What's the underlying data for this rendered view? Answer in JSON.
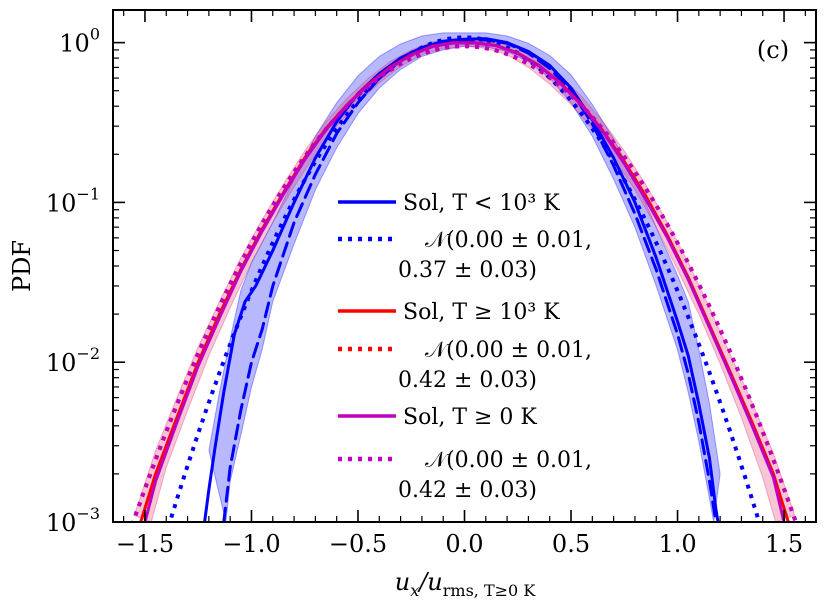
{
  "chart_data": {
    "type": "line",
    "panel_label": "(c)",
    "xlabel": "u_x/u_rms, T≥0 K",
    "xlabel_parts": {
      "u": "u",
      "x_sub": "x",
      "slash": "/u",
      "rms_sub": "rms, T≥0 K"
    },
    "ylabel": "PDF",
    "xlim": [
      -1.65,
      1.65
    ],
    "ylim": [
      0.001,
      1.6
    ],
    "y_scale": "log",
    "x_ticks": [
      -1.5,
      -1.0,
      -0.5,
      0.0,
      0.5,
      1.0,
      1.5
    ],
    "x_tick_labels": [
      "−1.5",
      "−1.0",
      "−0.5",
      "0.0",
      "0.5",
      "1.0",
      "1.5"
    ],
    "y_ticks": [
      {
        "value": 1,
        "base": "10",
        "exp": "0"
      },
      {
        "value": 0.1,
        "base": "10",
        "exp": "−1"
      },
      {
        "value": 0.01,
        "base": "10",
        "exp": "−2"
      },
      {
        "value": 0.001,
        "base": "10",
        "exp": "−3"
      }
    ],
    "colors": {
      "blue": "#0000ff",
      "red": "#ff0000",
      "magenta": "#c000c0",
      "pink": "#e0306a"
    },
    "series": [
      {
        "name": "Sol, T < 10³ K",
        "style": "solid",
        "color": "#0000ff",
        "points": [
          [
            -1.22,
            0.001
          ],
          [
            -1.2,
            0.0016
          ],
          [
            -1.17,
            0.003
          ],
          [
            -1.13,
            0.0065
          ],
          [
            -1.08,
            0.015
          ],
          [
            -1.03,
            0.024
          ],
          [
            -0.98,
            0.03
          ],
          [
            -0.9,
            0.05
          ],
          [
            -0.8,
            0.1
          ],
          [
            -0.7,
            0.19
          ],
          [
            -0.6,
            0.32
          ],
          [
            -0.5,
            0.48
          ],
          [
            -0.4,
            0.64
          ],
          [
            -0.3,
            0.8
          ],
          [
            -0.2,
            0.93
          ],
          [
            -0.1,
            1.02
          ],
          [
            0.0,
            1.05
          ],
          [
            0.1,
            1.06
          ],
          [
            0.2,
            1.0
          ],
          [
            0.3,
            0.88
          ],
          [
            0.4,
            0.72
          ],
          [
            0.5,
            0.52
          ],
          [
            0.6,
            0.33
          ],
          [
            0.7,
            0.19
          ],
          [
            0.8,
            0.1
          ],
          [
            0.9,
            0.045
          ],
          [
            1.0,
            0.018
          ],
          [
            1.05,
            0.011
          ],
          [
            1.1,
            0.0055
          ],
          [
            1.15,
            0.0025
          ],
          [
            1.18,
            0.0012
          ],
          [
            1.19,
            0.001
          ]
        ]
      },
      {
        "name": "Sol, T < 10³ K (shaded band)",
        "style": "band",
        "color": "#0000ff",
        "upper": [
          [
            -1.2,
            0.0028
          ],
          [
            -1.15,
            0.0065
          ],
          [
            -1.1,
            0.014
          ],
          [
            -1.05,
            0.028
          ],
          [
            -1.0,
            0.042
          ],
          [
            -0.9,
            0.075
          ],
          [
            -0.8,
            0.14
          ],
          [
            -0.7,
            0.26
          ],
          [
            -0.6,
            0.42
          ],
          [
            -0.5,
            0.62
          ],
          [
            -0.4,
            0.82
          ],
          [
            -0.3,
            0.98
          ],
          [
            -0.2,
            1.1
          ],
          [
            -0.1,
            1.15
          ],
          [
            0.0,
            1.15
          ],
          [
            0.1,
            1.15
          ],
          [
            0.2,
            1.1
          ],
          [
            0.3,
            0.99
          ],
          [
            0.4,
            0.83
          ],
          [
            0.5,
            0.63
          ],
          [
            0.6,
            0.41
          ],
          [
            0.7,
            0.25
          ],
          [
            0.8,
            0.14
          ],
          [
            0.9,
            0.07
          ],
          [
            1.0,
            0.035
          ],
          [
            1.05,
            0.024
          ],
          [
            1.1,
            0.012
          ],
          [
            1.15,
            0.0055
          ],
          [
            1.2,
            0.002
          ]
        ],
        "lower": [
          [
            -1.12,
            0.001
          ],
          [
            -1.1,
            0.0018
          ],
          [
            -1.05,
            0.0035
          ],
          [
            -1.0,
            0.007
          ],
          [
            -0.95,
            0.012
          ],
          [
            -0.9,
            0.024
          ],
          [
            -0.8,
            0.055
          ],
          [
            -0.7,
            0.12
          ],
          [
            -0.6,
            0.22
          ],
          [
            -0.5,
            0.36
          ],
          [
            -0.4,
            0.52
          ],
          [
            -0.3,
            0.68
          ],
          [
            -0.2,
            0.82
          ],
          [
            -0.1,
            0.9
          ],
          [
            0.0,
            0.95
          ],
          [
            0.1,
            0.94
          ],
          [
            0.2,
            0.88
          ],
          [
            0.3,
            0.76
          ],
          [
            0.4,
            0.6
          ],
          [
            0.5,
            0.42
          ],
          [
            0.6,
            0.26
          ],
          [
            0.7,
            0.14
          ],
          [
            0.8,
            0.07
          ],
          [
            0.9,
            0.03
          ],
          [
            1.0,
            0.012
          ],
          [
            1.05,
            0.0065
          ],
          [
            1.1,
            0.0032
          ],
          [
            1.15,
            0.0014
          ],
          [
            1.17,
            0.001
          ]
        ]
      },
      {
        "name": "Sol, T < 10³ K (dashed)",
        "style": "dashed",
        "color": "#0000ff",
        "points": [
          [
            -1.13,
            0.001
          ],
          [
            -1.1,
            0.0022
          ],
          [
            -1.05,
            0.005
          ],
          [
            -1.0,
            0.01
          ],
          [
            -0.95,
            0.016
          ],
          [
            -0.9,
            0.03
          ],
          [
            -0.8,
            0.075
          ],
          [
            -0.7,
            0.15
          ],
          [
            -0.6,
            0.27
          ],
          [
            -0.5,
            0.42
          ],
          [
            -0.4,
            0.6
          ],
          [
            -0.3,
            0.77
          ],
          [
            -0.2,
            0.9
          ],
          [
            -0.1,
            0.99
          ],
          [
            0.0,
            1.03
          ],
          [
            0.1,
            1.04
          ],
          [
            0.2,
            0.99
          ],
          [
            0.3,
            0.86
          ],
          [
            0.4,
            0.69
          ],
          [
            0.5,
            0.5
          ],
          [
            0.6,
            0.31
          ],
          [
            0.7,
            0.17
          ],
          [
            0.8,
            0.085
          ],
          [
            0.9,
            0.038
          ],
          [
            1.0,
            0.015
          ],
          [
            1.05,
            0.0085
          ],
          [
            1.1,
            0.0042
          ],
          [
            1.15,
            0.0018
          ],
          [
            1.18,
            0.001
          ]
        ]
      },
      {
        "name": "𝒩(0.00 ± 0.01, 0.37 ± 0.03)",
        "style": "dotted",
        "color": "#0000ff",
        "gaussian": {
          "mu": 0.0,
          "sigma": 0.37
        }
      },
      {
        "name": "Sol, T ≥ 10³ K",
        "style": "solid",
        "color": "#ff0000",
        "points": [
          [
            -1.52,
            0.001
          ],
          [
            -1.45,
            0.002
          ],
          [
            -1.35,
            0.0045
          ],
          [
            -1.25,
            0.01
          ],
          [
            -1.15,
            0.02
          ],
          [
            -1.05,
            0.038
          ],
          [
            -0.95,
            0.068
          ],
          [
            -0.85,
            0.115
          ],
          [
            -0.75,
            0.19
          ],
          [
            -0.65,
            0.29
          ],
          [
            -0.55,
            0.41
          ],
          [
            -0.45,
            0.55
          ],
          [
            -0.35,
            0.7
          ],
          [
            -0.25,
            0.84
          ],
          [
            -0.15,
            0.95
          ],
          [
            -0.05,
            1.0
          ],
          [
            0.05,
            1.0
          ],
          [
            0.15,
            0.96
          ],
          [
            0.25,
            0.86
          ],
          [
            0.35,
            0.72
          ],
          [
            0.45,
            0.56
          ],
          [
            0.55,
            0.41
          ],
          [
            0.65,
            0.28
          ],
          [
            0.75,
            0.18
          ],
          [
            0.85,
            0.11
          ],
          [
            0.95,
            0.063
          ],
          [
            1.05,
            0.034
          ],
          [
            1.15,
            0.017
          ],
          [
            1.25,
            0.0085
          ],
          [
            1.35,
            0.0042
          ],
          [
            1.45,
            0.002
          ],
          [
            1.52,
            0.001
          ]
        ]
      },
      {
        "name": "𝒩(0.00 ± 0.01, 0.42 ± 0.03)",
        "style": "dotted",
        "color": "#ff0000",
        "gaussian": {
          "mu": 0.0,
          "sigma": 0.42
        }
      },
      {
        "name": "Sol, T ≥ 0 K",
        "style": "solid",
        "color": "#c000c0",
        "points": [
          [
            -1.5,
            0.001
          ],
          [
            -1.45,
            0.0018
          ],
          [
            -1.35,
            0.0042
          ],
          [
            -1.25,
            0.0095
          ],
          [
            -1.15,
            0.019
          ],
          [
            -1.05,
            0.037
          ],
          [
            -0.95,
            0.066
          ],
          [
            -0.85,
            0.112
          ],
          [
            -0.75,
            0.185
          ],
          [
            -0.65,
            0.285
          ],
          [
            -0.55,
            0.405
          ],
          [
            -0.45,
            0.545
          ],
          [
            -0.35,
            0.695
          ],
          [
            -0.25,
            0.835
          ],
          [
            -0.15,
            0.945
          ],
          [
            -0.05,
            0.995
          ],
          [
            0.05,
            0.995
          ],
          [
            0.15,
            0.955
          ],
          [
            0.25,
            0.855
          ],
          [
            0.35,
            0.715
          ],
          [
            0.45,
            0.555
          ],
          [
            0.55,
            0.405
          ],
          [
            0.65,
            0.275
          ],
          [
            0.75,
            0.175
          ],
          [
            0.85,
            0.105
          ],
          [
            0.95,
            0.061
          ],
          [
            1.05,
            0.033
          ],
          [
            1.15,
            0.0165
          ],
          [
            1.25,
            0.0082
          ],
          [
            1.35,
            0.004
          ],
          [
            1.45,
            0.0019
          ],
          [
            1.5,
            0.001
          ]
        ]
      },
      {
        "name": "Sol, T ≥ 10³ K (shaded band)",
        "style": "band",
        "color": "#e0306a",
        "upper": [
          [
            -1.55,
            0.0011
          ],
          [
            -1.45,
            0.0028
          ],
          [
            -1.35,
            0.006
          ],
          [
            -1.25,
            0.0125
          ],
          [
            -1.15,
            0.024
          ],
          [
            -1.05,
            0.045
          ],
          [
            -0.95,
            0.078
          ],
          [
            -0.85,
            0.13
          ],
          [
            -0.75,
            0.21
          ],
          [
            -0.65,
            0.32
          ],
          [
            -0.55,
            0.45
          ],
          [
            -0.45,
            0.6
          ],
          [
            -0.35,
            0.76
          ],
          [
            -0.25,
            0.9
          ],
          [
            -0.15,
            1.01
          ],
          [
            -0.05,
            1.06
          ],
          [
            0.05,
            1.06
          ],
          [
            0.15,
            1.02
          ],
          [
            0.25,
            0.92
          ],
          [
            0.35,
            0.78
          ],
          [
            0.45,
            0.62
          ],
          [
            0.55,
            0.46
          ],
          [
            0.65,
            0.32
          ],
          [
            0.75,
            0.21
          ],
          [
            0.85,
            0.13
          ],
          [
            0.95,
            0.076
          ],
          [
            1.05,
            0.042
          ],
          [
            1.15,
            0.022
          ],
          [
            1.25,
            0.011
          ],
          [
            1.35,
            0.0056
          ],
          [
            1.45,
            0.0027
          ],
          [
            1.55,
            0.0011
          ]
        ],
        "lower": [
          [
            -1.47,
            0.001
          ],
          [
            -1.4,
            0.0022
          ],
          [
            -1.3,
            0.005
          ],
          [
            -1.2,
            0.011
          ],
          [
            -1.1,
            0.022
          ],
          [
            -1.0,
            0.042
          ],
          [
            -0.9,
            0.075
          ],
          [
            -0.8,
            0.125
          ],
          [
            -0.7,
            0.2
          ],
          [
            -0.6,
            0.3
          ],
          [
            -0.5,
            0.42
          ],
          [
            -0.4,
            0.56
          ],
          [
            -0.3,
            0.71
          ],
          [
            -0.2,
            0.84
          ],
          [
            -0.1,
            0.92
          ],
          [
            0.0,
            0.95
          ],
          [
            0.1,
            0.92
          ],
          [
            0.2,
            0.84
          ],
          [
            0.3,
            0.7
          ],
          [
            0.4,
            0.55
          ],
          [
            0.5,
            0.41
          ],
          [
            0.6,
            0.29
          ],
          [
            0.7,
            0.19
          ],
          [
            0.8,
            0.12
          ],
          [
            0.9,
            0.07
          ],
          [
            1.0,
            0.038
          ],
          [
            1.1,
            0.02
          ],
          [
            1.2,
            0.0098
          ],
          [
            1.3,
            0.0045
          ],
          [
            1.4,
            0.0019
          ],
          [
            1.46,
            0.001
          ]
        ]
      },
      {
        "name": "𝒩(0.00 ± 0.01, 0.42 ± 0.03)",
        "style": "dotted",
        "color": "#c000c0",
        "gaussian": {
          "mu": 0.0,
          "sigma": 0.42
        }
      }
    ],
    "legend": {
      "placement": "center",
      "entries": [
        {
          "style": "solid",
          "color": "#0000ff",
          "line1": "Sol, T < 10³ K"
        },
        {
          "style": "dotted",
          "color": "#0000ff",
          "line1": "𝒩(0.00 ± 0.01,",
          "line2": "0.37 ± 0.03)"
        },
        {
          "style": "solid",
          "color": "#ff0000",
          "line1": "Sol, T ≥ 10³ K"
        },
        {
          "style": "dotted",
          "color": "#ff0000",
          "line1": "𝒩(0.00 ± 0.01,",
          "line2": "0.42 ± 0.03)"
        },
        {
          "style": "solid",
          "color": "#c000c0",
          "line1": "Sol, T ≥ 0 K"
        },
        {
          "style": "dotted",
          "color": "#c000c0",
          "line1": "𝒩(0.00 ± 0.01,",
          "line2": "0.42 ± 0.03)"
        }
      ]
    }
  }
}
